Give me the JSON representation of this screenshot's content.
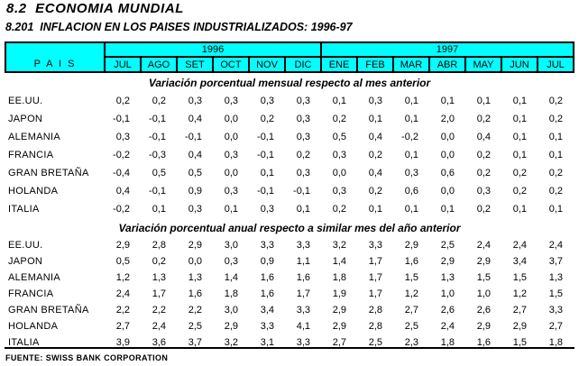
{
  "page": {
    "title": "8.2  ECONOMIA MUNDIAL",
    "subtitle": "8.201  INFLACION EN LOS PAISES INDUSTRIALIZADOS: 1996-97",
    "source": "FUENTE: SWISS BANK CORPORATION"
  },
  "table": {
    "pais_header": "P A I S",
    "year_groups": [
      {
        "label": "1996",
        "span": 6
      },
      {
        "label": "1997",
        "span": 7
      }
    ],
    "months": [
      "JUL",
      "AGO",
      "SET",
      "OCT",
      "NOV",
      "DIC",
      "ENE",
      "FEB",
      "MAR",
      "ABR",
      "MAY",
      "JUN",
      "JUL"
    ],
    "colors": {
      "header_bg": "#00FFFF",
      "border": "#000000"
    },
    "sections": [
      {
        "heading": "Variación porcentual mensual respecto al mes anterior",
        "rows": [
          {
            "pais": "EE.UU.",
            "values": [
              "0,2",
              "0,2",
              "0,3",
              "0,3",
              "0,3",
              "0,3",
              "0,1",
              "0,3",
              "0,1",
              "0,1",
              "0,1",
              "0,1",
              "0,2"
            ]
          },
          {
            "pais": "JAPON",
            "values": [
              "-0,1",
              "-0,1",
              "0,4",
              "0,0",
              "0,2",
              "0,3",
              "0,2",
              "0,1",
              "0,1",
              "2,0",
              "0,2",
              "0,1",
              "0,2"
            ]
          },
          {
            "pais": "ALEMANIA",
            "values": [
              "0,3",
              "-0,1",
              "-0,1",
              "0,0",
              "-0,1",
              "0,3",
              "0,5",
              "0,4",
              "-0,2",
              "0,0",
              "0,4",
              "0,1",
              "0,1"
            ]
          },
          {
            "pais": "FRANCIA",
            "values": [
              "-0,2",
              "-0,3",
              "0,4",
              "0,3",
              "-0,1",
              "0,2",
              "0,3",
              "0,2",
              "0,1",
              "0,0",
              "0,2",
              "0,1",
              "0,1"
            ]
          },
          {
            "pais": "GRAN BRETAÑA",
            "values": [
              "-0,4",
              "0,5",
              "0,5",
              "0,0",
              "0,1",
              "0,3",
              "0,0",
              "0,4",
              "0,3",
              "0,6",
              "0,2",
              "0,2",
              "0,2"
            ]
          },
          {
            "pais": "HOLANDA",
            "values": [
              "0,4",
              "-0,1",
              "0,9",
              "0,3",
              "-0,1",
              "-0,1",
              "0,3",
              "0,2",
              "0,6",
              "0,0",
              "0,3",
              "0,2",
              "0,2"
            ]
          },
          {
            "pais": "ITALIA",
            "values": [
              "-0,2",
              "0,1",
              "0,3",
              "0,1",
              "0,3",
              "0,1",
              "0,2",
              "0,1",
              "0,1",
              "0,1",
              "0,2",
              "0,1",
              "0,1"
            ]
          }
        ]
      },
      {
        "heading": "Variación porcentual anual respecto a similar mes del año anterior",
        "rows": [
          {
            "pais": "EE.UU.",
            "values": [
              "2,9",
              "2,8",
              "2,9",
              "3,0",
              "3,3",
              "3,3",
              "3,2",
              "3,3",
              "2,9",
              "2,5",
              "2,4",
              "2,4",
              "2,4"
            ]
          },
          {
            "pais": "JAPON",
            "values": [
              "0,5",
              "0,2",
              "0,0",
              "0,3",
              "0,9",
              "1,1",
              "1,4",
              "1,7",
              "1,6",
              "2,9",
              "2,9",
              "3,4",
              "3,7"
            ]
          },
          {
            "pais": "ALEMANIA",
            "values": [
              "1,2",
              "1,3",
              "1,3",
              "1,4",
              "1,6",
              "1,6",
              "1,8",
              "1,7",
              "1,5",
              "1,3",
              "1,5",
              "1,5",
              "1,3"
            ]
          },
          {
            "pais": "FRANCIA",
            "values": [
              "2,4",
              "1,7",
              "1,6",
              "1,8",
              "1,6",
              "1,7",
              "1,9",
              "1,7",
              "1,2",
              "1,0",
              "1,0",
              "1,2",
              "1,5"
            ]
          },
          {
            "pais": "GRAN BRETAÑA",
            "values": [
              "2,2",
              "2,2",
              "2,2",
              "3,0",
              "3,4",
              "3,3",
              "2,9",
              "2,8",
              "2,7",
              "2,6",
              "2,6",
              "2,7",
              "3,3"
            ]
          },
          {
            "pais": "HOLANDA",
            "values": [
              "2,7",
              "2,4",
              "2,5",
              "2,9",
              "3,3",
              "4,1",
              "2,9",
              "2,8",
              "2,5",
              "2,4",
              "2,9",
              "2,9",
              "2,7"
            ]
          },
          {
            "pais": "ITALIA",
            "values": [
              "3,9",
              "3,6",
              "3,7",
              "3,2",
              "3,1",
              "3,3",
              "2,7",
              "2,5",
              "2,3",
              "1,8",
              "1,6",
              "1,5",
              "1,8"
            ]
          }
        ]
      }
    ]
  }
}
